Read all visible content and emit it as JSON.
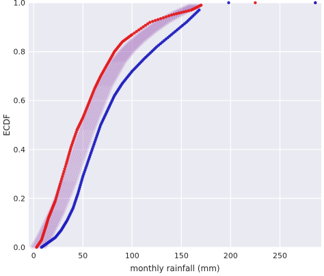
{
  "chart_data": {
    "type": "scatter",
    "title": "",
    "xlabel": "monthly rainfall (mm)",
    "ylabel": "ECDF",
    "xlim": [
      -5,
      292
    ],
    "ylim": [
      0,
      1.0
    ],
    "x_ticks": [
      0,
      50,
      100,
      150,
      200,
      250
    ],
    "y_ticks": [
      0.0,
      0.2,
      0.4,
      0.6,
      0.8,
      1.0
    ],
    "x_tick_labels": [
      "0",
      "50",
      "100",
      "150",
      "200",
      "250"
    ],
    "y_tick_labels": [
      "0.0",
      "0.2",
      "0.4",
      "0.6",
      "0.8",
      "1.0"
    ],
    "grid": true,
    "legend": "none",
    "background": "#eaeaf2",
    "gridcolor": "#ffffff",
    "series": [
      {
        "role": "left-bound",
        "color": "#e41a1c",
        "marker": "dot",
        "x": [
          3,
          8,
          12,
          15,
          18,
          22,
          27,
          33,
          38,
          44,
          50,
          56,
          62,
          68,
          75,
          82,
          90,
          100,
          118,
          140,
          160,
          170,
          225,
          286
        ],
        "y": [
          0.0,
          0.03,
          0.08,
          0.12,
          0.15,
          0.19,
          0.26,
          0.34,
          0.41,
          0.48,
          0.53,
          0.59,
          0.65,
          0.7,
          0.75,
          0.8,
          0.84,
          0.87,
          0.92,
          0.95,
          0.97,
          0.99,
          1.0,
          1.0
        ]
      },
      {
        "role": "right-bound",
        "color": "#1f1fbf",
        "marker": "dot",
        "x": [
          8,
          15,
          22,
          28,
          34,
          40,
          45,
          50,
          56,
          62,
          68,
          75,
          82,
          90,
          100,
          112,
          125,
          140,
          155,
          168,
          198,
          286
        ],
        "y": [
          0.0,
          0.02,
          0.04,
          0.07,
          0.11,
          0.16,
          0.22,
          0.29,
          0.36,
          0.43,
          0.5,
          0.56,
          0.62,
          0.67,
          0.72,
          0.77,
          0.82,
          0.87,
          0.92,
          0.97,
          1.0,
          1.0
        ]
      },
      {
        "role": "bootstrap-band",
        "color": "#9b59b6",
        "marker": "dot",
        "x": [
          5,
          12,
          18,
          24,
          30,
          36,
          42,
          48,
          54,
          60,
          66,
          72,
          79,
          86,
          94,
          104,
          116,
          130,
          148,
          165,
          200,
          225,
          286
        ],
        "y": [
          0.0,
          0.05,
          0.1,
          0.15,
          0.21,
          0.27,
          0.34,
          0.41,
          0.48,
          0.54,
          0.6,
          0.66,
          0.71,
          0.76,
          0.8,
          0.84,
          0.88,
          0.92,
          0.96,
          0.99,
          1.0,
          1.0,
          1.0
        ]
      }
    ]
  }
}
